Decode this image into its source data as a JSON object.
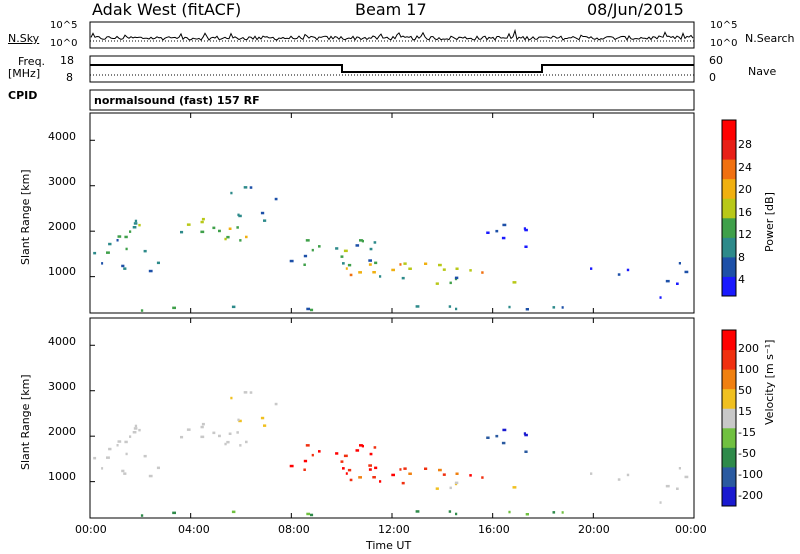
{
  "header": {
    "station": "Adak West (fitACF)",
    "beam": "Beam 17",
    "date": "08/Jun/2015"
  },
  "top_panels": {
    "nsky_label": "N.Sky",
    "nsky_ticks": [
      "10^5",
      "10^0"
    ],
    "nsearch_label": "N.Search",
    "nsearch_ticks": [
      "10^5",
      "10^0"
    ],
    "freq_label_line1": "Freq.",
    "freq_label_line2": "[MHz]",
    "freq_ticks": [
      "18",
      "8"
    ],
    "nave_label": "Nave",
    "nave_ticks": [
      "60",
      "0"
    ],
    "cpid_label": "CPID",
    "cpid_value": "normalsound (fast) 157 RF"
  },
  "chart_data": [
    {
      "type": "heatmap",
      "name": "power",
      "ylabel": "Slant Range [km]",
      "ylim": [
        200,
        4600
      ],
      "yticks": [
        "1000",
        "2000",
        "3000",
        "4000"
      ],
      "xticks": [
        "00:00",
        "04:00",
        "08:00",
        "12:00",
        "16:00",
        "20:00",
        "00:00"
      ],
      "colorbar": {
        "label": "Power [dB]",
        "ticks": [
          "4",
          "8",
          "12",
          "16",
          "20",
          "24",
          "28"
        ],
        "colors": [
          "#1a1aff",
          "#1d50a8",
          "#2d8a8a",
          "#3fa04a",
          "#b8c818",
          "#f0b010",
          "#f07010",
          "#e82018",
          "#ff0000"
        ]
      }
    },
    {
      "type": "heatmap",
      "name": "velocity",
      "ylabel": "Slant Range [km]",
      "ylim": [
        200,
        4600
      ],
      "yticks": [
        "1000",
        "2000",
        "3000",
        "4000"
      ],
      "xticks": [
        "00:00",
        "04:00",
        "08:00",
        "12:00",
        "16:00",
        "20:00",
        "00:00"
      ],
      "xlabel": "Time UT",
      "colorbar": {
        "label": "Velocity [m s⁻¹]",
        "ticks": [
          "200",
          "100",
          "50",
          "15",
          "-15",
          "-50",
          "-100",
          "-200"
        ],
        "colors": [
          "#1a1ad0",
          "#2a5aa0",
          "#2e8a4a",
          "#70c040",
          "#c8c8c8",
          "#f0c020",
          "#f08010",
          "#f03010",
          "#ff0000"
        ]
      }
    }
  ]
}
